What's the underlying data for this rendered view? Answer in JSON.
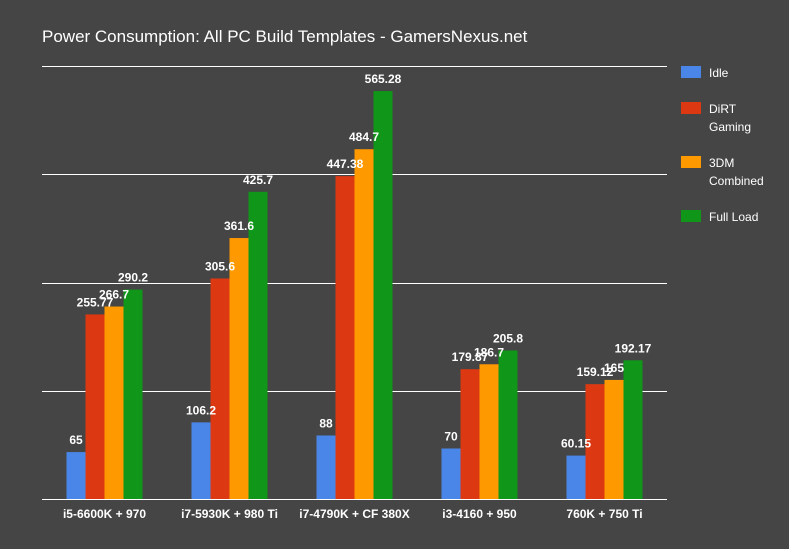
{
  "chart_data": {
    "type": "bar",
    "title": "Power Consumption: All PC Build Templates - GamersNexus.net",
    "xlabel": "",
    "ylabel": "",
    "ylim": [
      0,
      600
    ],
    "grid": true,
    "legend": "right",
    "categories": [
      "i5-6600K + 970",
      "i7-5930K + 980 Ti",
      "i7-4790K + CF 380X",
      "i3-4160 + 950",
      "760K + 750 Ti"
    ],
    "series": [
      {
        "name": "Idle",
        "color": "#4a86e8",
        "values": [
          65,
          106.2,
          88,
          70,
          60.15
        ]
      },
      {
        "name": "DiRT Gaming",
        "color": "#dc3912",
        "values": [
          255.77,
          305.6,
          447.38,
          179.87,
          159.12
        ]
      },
      {
        "name": "3DM Combined",
        "color": "#ff9900",
        "values": [
          266.7,
          361.6,
          484.7,
          186.7,
          165
        ]
      },
      {
        "name": "Full Load",
        "color": "#109618",
        "values": [
          290.2,
          425.7,
          565.28,
          205.8,
          192.17
        ]
      }
    ],
    "legend_lines": [
      [
        "Idle"
      ],
      [
        "DiRT",
        "Gaming"
      ],
      [
        "3DM",
        "Combined"
      ],
      [
        "Full Load"
      ]
    ]
  }
}
